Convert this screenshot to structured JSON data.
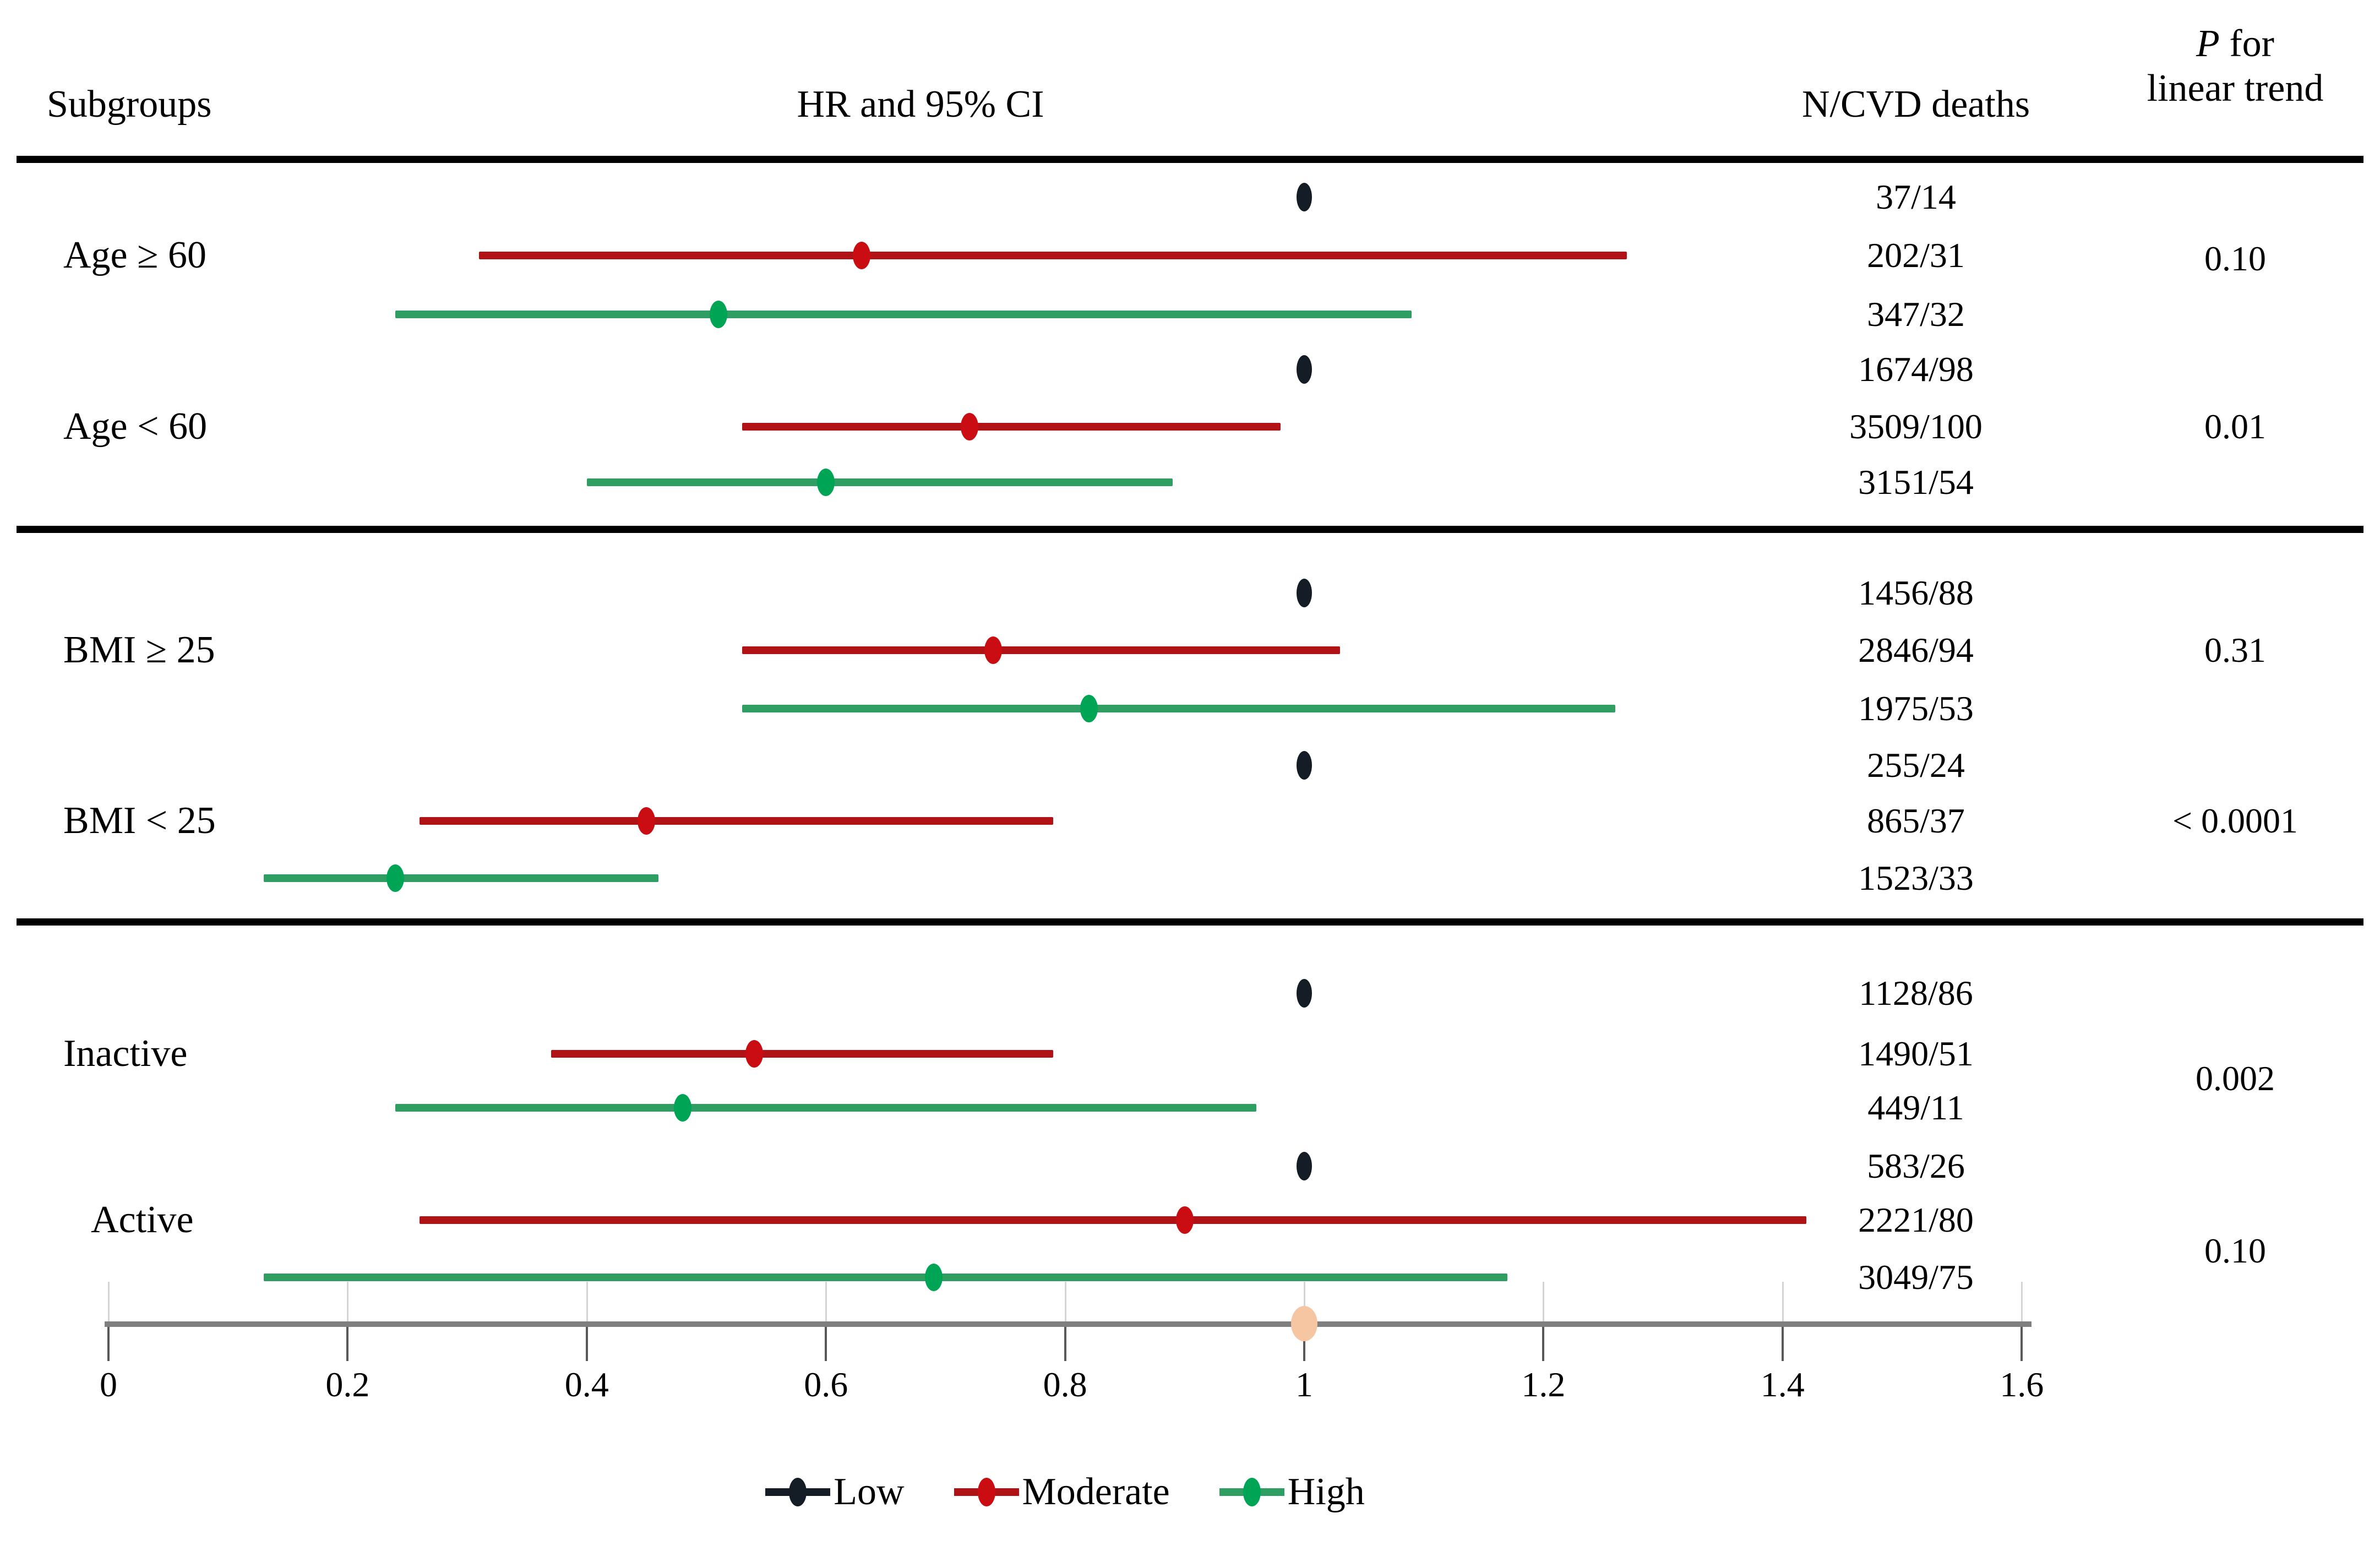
{
  "header": {
    "subgroups_label": "Subgroups",
    "hr_label": "HR and 95% CI",
    "n_label": "N/CVD deaths",
    "p_label_line1": "P for",
    "p_label_line1_italic_part": "P",
    "p_label_line1_rest": " for",
    "p_label_line2": "linear trend"
  },
  "colors": {
    "low_dot": "#141d26",
    "moderate_line": "#b11216",
    "moderate_dot": "#c90d13",
    "high_line": "#2e9e63",
    "high_dot": "#00a455",
    "axis": "#7f7f7f",
    "axis_marker": "#f6c5a2",
    "separator": "#000000"
  },
  "chart_data": {
    "type": "scatter",
    "subtype": "forest-plot",
    "title": "HR and 95% CI",
    "xlim": [
      0,
      1.6
    ],
    "x_ticks": [
      "0",
      "0.2",
      "0.4",
      "0.6",
      "0.8",
      "1",
      "1.2",
      "1.4",
      "1.6"
    ],
    "x_tick_values": [
      0,
      0.2,
      0.4,
      0.6,
      0.8,
      1.0,
      1.2,
      1.4,
      1.6
    ],
    "grid": false,
    "legend_position": "bottom",
    "axis_marker": {
      "value": 1.0,
      "color": "#f6c5a2"
    },
    "levels": [
      "Low",
      "Moderate",
      "High"
    ],
    "sections": [
      {
        "subgroups": [
          {
            "label": "Age ≥ 60",
            "p_for_linear_trend": "0.10",
            "series": [
              {
                "level": "Low",
                "hr": 1.0,
                "ci_low": null,
                "ci_high": null,
                "n_cvd_deaths": "37/14"
              },
              {
                "level": "Moderate",
                "hr": 0.63,
                "ci_low": 0.31,
                "ci_high": 1.27,
                "n_cvd_deaths": "202/31"
              },
              {
                "level": "High",
                "hr": 0.51,
                "ci_low": 0.24,
                "ci_high": 1.09,
                "n_cvd_deaths": "347/32"
              }
            ]
          },
          {
            "label": "Age < 60",
            "p_for_linear_trend": "0.01",
            "series": [
              {
                "level": "Low",
                "hr": 1.0,
                "ci_low": null,
                "ci_high": null,
                "n_cvd_deaths": "1674/98"
              },
              {
                "level": "Moderate",
                "hr": 0.72,
                "ci_low": 0.53,
                "ci_high": 0.98,
                "n_cvd_deaths": "3509/100"
              },
              {
                "level": "High",
                "hr": 0.6,
                "ci_low": 0.4,
                "ci_high": 0.89,
                "n_cvd_deaths": "3151/54"
              }
            ]
          }
        ]
      },
      {
        "subgroups": [
          {
            "label": "BMI ≥ 25",
            "p_for_linear_trend": "0.31",
            "series": [
              {
                "level": "Low",
                "hr": 1.0,
                "ci_low": null,
                "ci_high": null,
                "n_cvd_deaths": "1456/88"
              },
              {
                "level": "Moderate",
                "hr": 0.74,
                "ci_low": 0.53,
                "ci_high": 1.03,
                "n_cvd_deaths": "2846/94"
              },
              {
                "level": "High",
                "hr": 0.82,
                "ci_low": 0.53,
                "ci_high": 1.26,
                "n_cvd_deaths": "1975/53"
              }
            ]
          },
          {
            "label": "BMI < 25",
            "p_for_linear_trend": "< 0.0001",
            "series": [
              {
                "level": "Low",
                "hr": 1.0,
                "ci_low": null,
                "ci_high": null,
                "n_cvd_deaths": "255/24"
              },
              {
                "level": "Moderate",
                "hr": 0.45,
                "ci_low": 0.26,
                "ci_high": 0.79,
                "n_cvd_deaths": "865/37"
              },
              {
                "level": "High",
                "hr": 0.24,
                "ci_low": 0.13,
                "ci_high": 0.46,
                "n_cvd_deaths": "1523/33"
              }
            ]
          }
        ]
      },
      {
        "subgroups": [
          {
            "label": "Inactive",
            "p_for_linear_trend": "0.002",
            "series": [
              {
                "level": "Low",
                "hr": 1.0,
                "ci_low": null,
                "ci_high": null,
                "n_cvd_deaths": "1128/86"
              },
              {
                "level": "Moderate",
                "hr": 0.54,
                "ci_low": 0.37,
                "ci_high": 0.79,
                "n_cvd_deaths": "1490/51"
              },
              {
                "level": "High",
                "hr": 0.48,
                "ci_low": 0.24,
                "ci_high": 0.96,
                "n_cvd_deaths": "449/11"
              }
            ]
          },
          {
            "label": "Active",
            "p_for_linear_trend": "0.10",
            "series": [
              {
                "level": "Low",
                "hr": 1.0,
                "ci_low": null,
                "ci_high": null,
                "n_cvd_deaths": "583/26"
              },
              {
                "level": "Moderate",
                "hr": 0.9,
                "ci_low": 0.26,
                "ci_high": 1.42,
                "n_cvd_deaths": "2221/80"
              },
              {
                "level": "High",
                "hr": 0.69,
                "ci_low": 0.13,
                "ci_high": 1.17,
                "n_cvd_deaths": "3049/75"
              }
            ]
          }
        ]
      }
    ],
    "legend_items": [
      {
        "label": "Low",
        "line_color": "#141d26",
        "dot_color": "#141d26"
      },
      {
        "label": "Moderate",
        "line_color": "#b11216",
        "dot_color": "#c90d13"
      },
      {
        "label": "High",
        "line_color": "#2e9e63",
        "dot_color": "#00a455"
      }
    ]
  }
}
